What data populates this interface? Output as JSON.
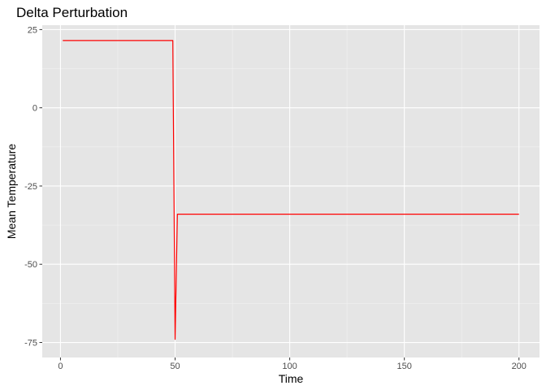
{
  "chart_data": {
    "type": "line",
    "title": "Delta Perturbation",
    "xlabel": "Time",
    "ylabel": "Mean Temperature",
    "xlim": [
      -7.95,
      208.95
    ],
    "ylim": [
      -79.8,
      26.4
    ],
    "x_ticks": [
      0,
      50,
      100,
      150,
      200
    ],
    "x_tick_labels": [
      "0",
      "50",
      "100",
      "150",
      "200"
    ],
    "y_ticks": [
      25,
      0,
      -25,
      -50,
      -75
    ],
    "y_tick_labels": [
      "25",
      "0",
      "-25",
      "-50",
      "-75"
    ],
    "grid": true,
    "legend": "none",
    "series": [
      {
        "color": "#ff0000",
        "x": [
          1,
          49,
          50,
          51,
          200
        ],
        "y": [
          21.5,
          21.5,
          -74,
          -34,
          -34
        ]
      }
    ]
  },
  "colors": {
    "panel_background": "#e5e5e5",
    "grid_major": "#ffffff",
    "grid_minor": "#f2f2f2",
    "tick_mark": "#333333"
  }
}
